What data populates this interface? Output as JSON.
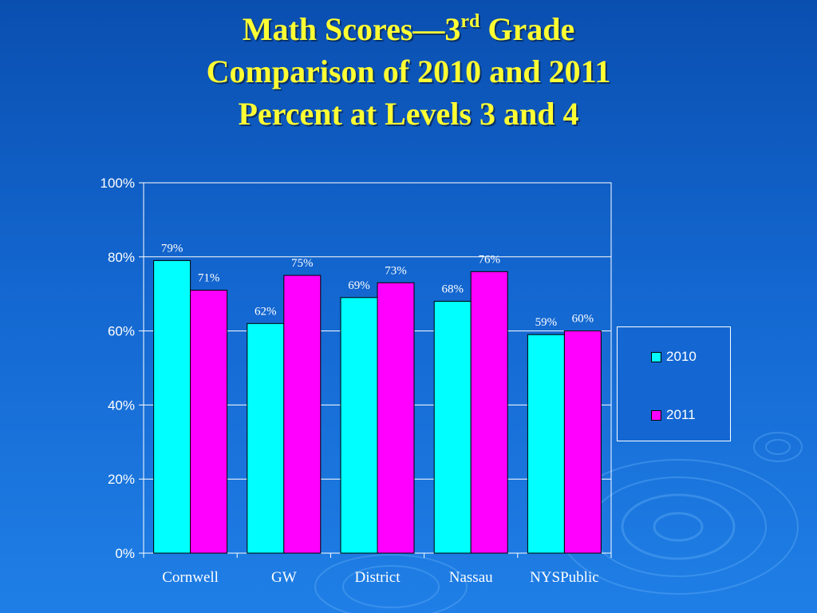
{
  "slide": {
    "title_line1_main": "Math Scores—3",
    "title_line1_sup": "rd",
    "title_line1_tail": " Grade",
    "title_line2": "Comparison of 2010 and 2011",
    "title_line3": "Percent at Levels 3 and 4"
  },
  "colors": {
    "series_2010": "#00ffff",
    "series_2011": "#ff00ff",
    "title": "#ffff33",
    "background": "#1467d2"
  },
  "chart_data": {
    "type": "bar",
    "title": "Math Scores—3rd Grade Comparison of 2010 and 2011 Percent at Levels 3 and 4",
    "categories": [
      "Cornwell",
      "GW",
      "District",
      "Nassau",
      "NYSPublic"
    ],
    "series": [
      {
        "name": "2010",
        "values": [
          79,
          62,
          69,
          68,
          59
        ],
        "labels": [
          "79%",
          "62%",
          "69%",
          "68%",
          "59%"
        ]
      },
      {
        "name": "2011",
        "values": [
          71,
          75,
          73,
          76,
          60
        ],
        "labels": [
          "71%",
          "75%",
          "73%",
          "76%",
          "60%"
        ]
      }
    ],
    "yticks": [
      "0%",
      "20%",
      "40%",
      "60%",
      "80%",
      "100%"
    ],
    "ylim": [
      0,
      100
    ],
    "xlabel": "",
    "ylabel": "",
    "grid": true,
    "legend": "right"
  }
}
